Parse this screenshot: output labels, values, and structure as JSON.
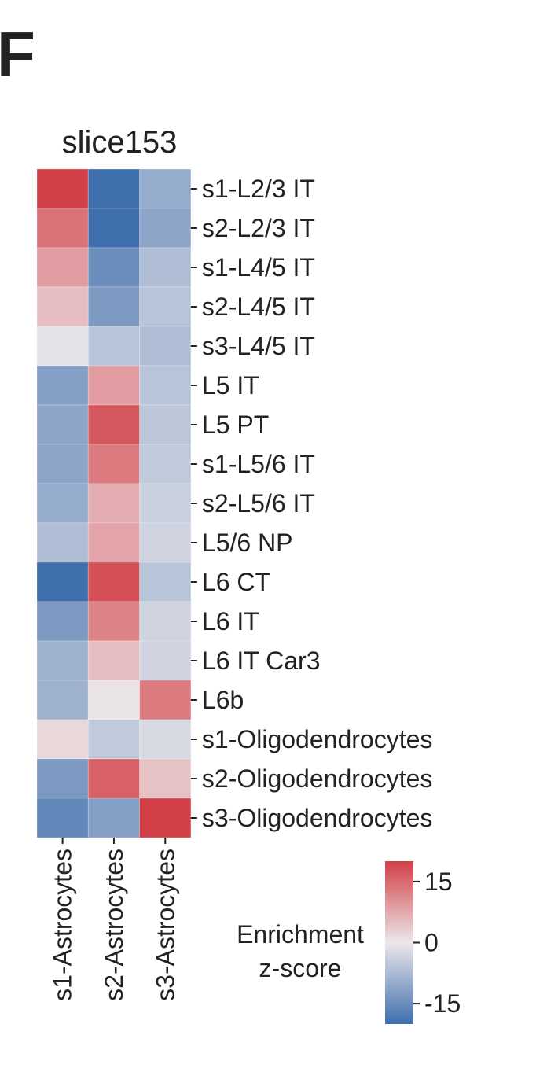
{
  "panel_label": "F",
  "chart_data": {
    "type": "heatmap",
    "title": "slice153",
    "rows": [
      "s1-L2/3 IT",
      "s2-L2/3 IT",
      "s1-L4/5 IT",
      "s2-L4/5 IT",
      "s3-L4/5 IT",
      "L5 IT",
      "L5 PT",
      "s1-L5/6 IT",
      "s2-L5/6 IT",
      "L5/6 NP",
      "L6 CT",
      "L6 IT",
      "L6 IT Car3",
      "L6b",
      "s1-Oligodendrocytes",
      "s2-Oligodendrocytes",
      "s3-Oligodendrocytes"
    ],
    "columns": [
      "s1-Astrocytes",
      "s2-Astrocytes",
      "s3-Astrocytes"
    ],
    "values": [
      [
        20,
        -20,
        -10
      ],
      [
        14,
        -20,
        -11
      ],
      [
        9,
        -15,
        -7
      ],
      [
        5,
        -13,
        -6
      ],
      [
        -1,
        -6,
        -7
      ],
      [
        -12,
        9,
        -6
      ],
      [
        -11,
        17,
        -5.5
      ],
      [
        -11,
        13,
        -5
      ],
      [
        -10,
        7,
        -4
      ],
      [
        -7,
        8,
        -3.5
      ],
      [
        -20,
        18,
        -6
      ],
      [
        -13,
        12,
        -3.5
      ],
      [
        -9,
        5,
        -3.5
      ],
      [
        -9,
        0.5,
        13
      ],
      [
        2,
        -5,
        -2.5
      ],
      [
        -13,
        16,
        4.5
      ],
      [
        -16,
        -12,
        20
      ]
    ],
    "colorbar": {
      "label_lines": [
        "Enrichment",
        "z-score"
      ],
      "range": [
        -20,
        20
      ],
      "ticks": [
        15,
        0,
        -15
      ],
      "tick_labels": [
        "15",
        "0",
        "-15"
      ],
      "colors": {
        "low": "#3f6fad",
        "mid": "#ece8ea",
        "high": "#d23f46"
      }
    }
  }
}
